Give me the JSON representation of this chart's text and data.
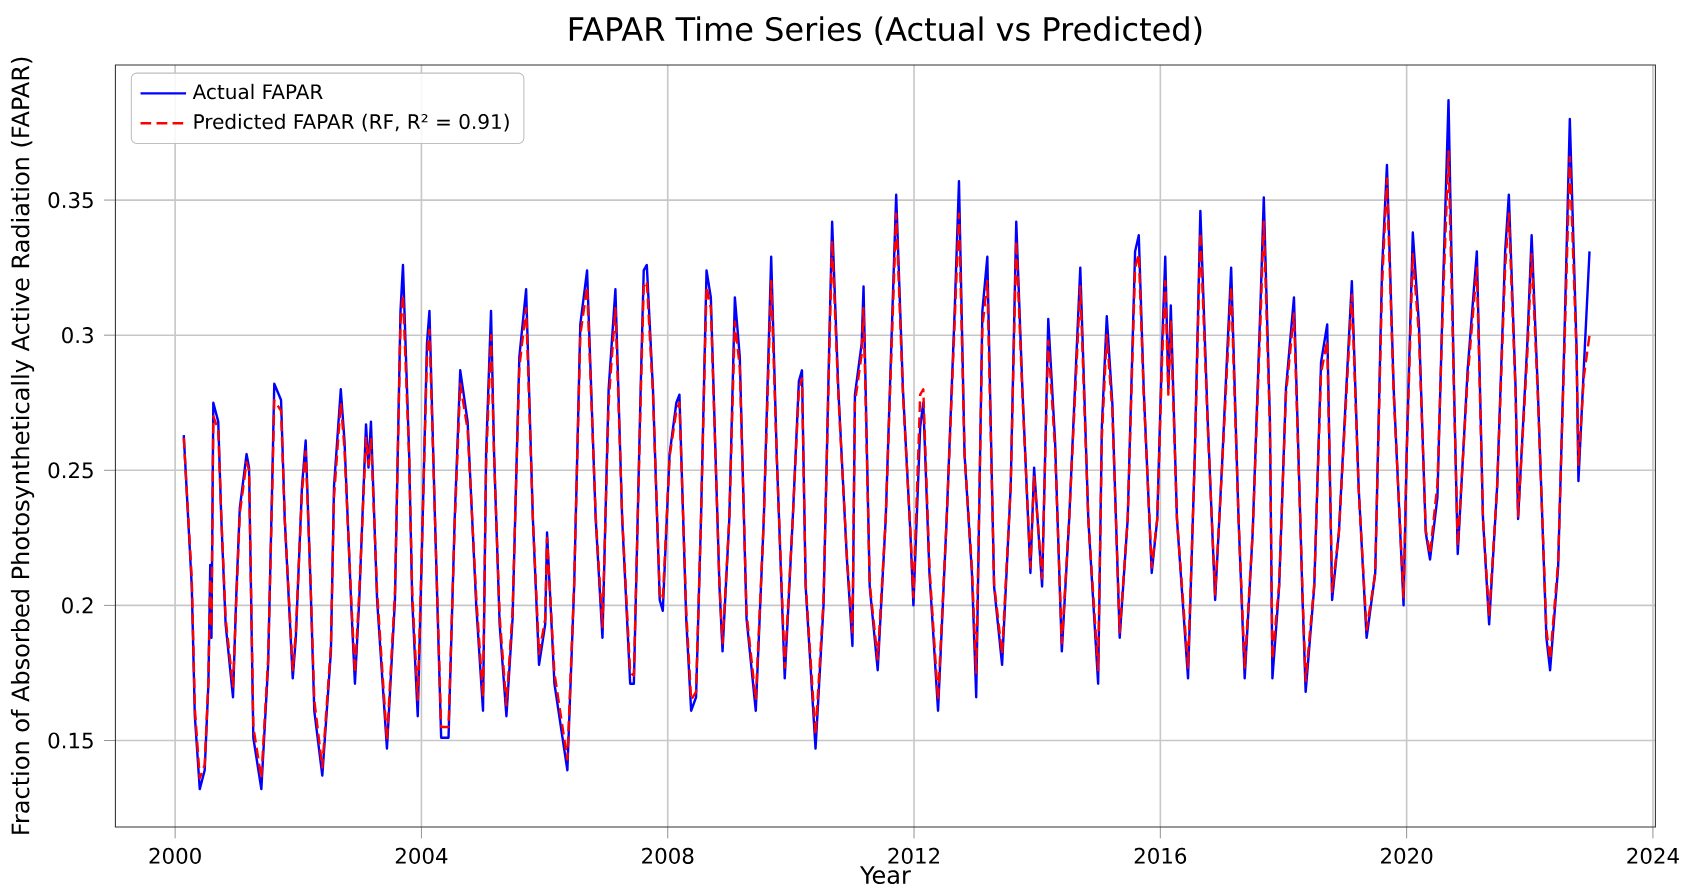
{
  "chart_data": {
    "type": "line",
    "title": "FAPAR Time Series (Actual vs Predicted)",
    "xlabel": "Year",
    "ylabel": "Fraction of Absorbed Photosynthetically Active Radiation (FAPAR)",
    "xlim": [
      1999.03,
      2024.04
    ],
    "ylim": [
      0.118,
      0.4
    ],
    "xticks": [
      2000,
      2004,
      2008,
      2012,
      2016,
      2020,
      2024
    ],
    "yticks": [
      0.15,
      0.2,
      0.25,
      0.3,
      0.35
    ],
    "grid": true,
    "legend": "top left",
    "x": [
      2000.14,
      2000.27,
      2000.32,
      2000.4,
      2000.48,
      2000.54,
      2000.57,
      2000.59,
      2000.62,
      2000.7,
      2000.75,
      2000.82,
      2000.94,
      2000.99,
      2001.05,
      2001.16,
      2001.2,
      2001.27,
      2001.4,
      2001.51,
      2001.58,
      2001.61,
      2001.72,
      2001.78,
      2001.91,
      2001.96,
      2002.06,
      2002.12,
      2002.2,
      2002.26,
      2002.39,
      2002.53,
      2002.58,
      2002.69,
      2002.75,
      2002.86,
      2002.92,
      2002.99,
      2003.1,
      2003.14,
      2003.18,
      2003.28,
      2003.44,
      2003.57,
      2003.66,
      2003.7,
      2003.8,
      2003.85,
      2003.94,
      2003.98,
      2004.09,
      2004.13,
      2004.22,
      2004.32,
      2004.44,
      2004.54,
      2004.63,
      2004.75,
      2004.89,
      2005.0,
      2005.05,
      2005.13,
      2005.18,
      2005.27,
      2005.38,
      2005.48,
      2005.59,
      2005.7,
      2005.81,
      2005.91,
      2006.01,
      2006.04,
      2006.16,
      2006.37,
      2006.48,
      2006.58,
      2006.69,
      2006.83,
      2006.94,
      2007.04,
      2007.15,
      2007.26,
      2007.39,
      2007.45,
      2007.56,
      2007.61,
      2007.66,
      2007.76,
      2007.87,
      2007.92,
      2008.03,
      2008.14,
      2008.19,
      2008.3,
      2008.38,
      2008.46,
      2008.54,
      2008.63,
      2008.7,
      2008.84,
      2008.89,
      2009.0,
      2009.09,
      2009.17,
      2009.28,
      2009.43,
      2009.56,
      2009.68,
      2009.77,
      2009.9,
      2010.03,
      2010.13,
      2010.18,
      2010.24,
      2010.4,
      2010.53,
      2010.63,
      2010.67,
      2010.77,
      2010.91,
      2011.0,
      2011.04,
      2011.15,
      2011.18,
      2011.28,
      2011.41,
      2011.54,
      2011.67,
      2011.71,
      2011.82,
      2011.94,
      2011.99,
      2012.1,
      2012.15,
      2012.25,
      2012.39,
      2012.53,
      2012.66,
      2012.73,
      2012.82,
      2012.94,
      2013.01,
      2013.11,
      2013.19,
      2013.3,
      2013.43,
      2013.57,
      2013.66,
      2013.76,
      2013.89,
      2013.95,
      2014.08,
      2014.18,
      2014.29,
      2014.4,
      2014.52,
      2014.7,
      2014.83,
      2014.99,
      2015.05,
      2015.13,
      2015.22,
      2015.34,
      2015.47,
      2015.59,
      2015.65,
      2015.73,
      2015.86,
      2015.95,
      2016.03,
      2016.08,
      2016.13,
      2016.17,
      2016.27,
      2016.45,
      2016.56,
      2016.65,
      2016.77,
      2016.89,
      2017.0,
      2017.15,
      2017.27,
      2017.37,
      2017.5,
      2017.63,
      2017.68,
      2017.78,
      2017.82,
      2017.93,
      2018.04,
      2018.17,
      2018.31,
      2018.36,
      2018.5,
      2018.61,
      2018.71,
      2018.79,
      2018.9,
      2019.11,
      2019.22,
      2019.35,
      2019.49,
      2019.6,
      2019.68,
      2019.79,
      2019.95,
      2020.0,
      2020.1,
      2020.2,
      2020.31,
      2020.38,
      2020.5,
      2020.59,
      2020.68,
      2020.77,
      2020.83,
      2020.99,
      2021.14,
      2021.24,
      2021.34,
      2021.47,
      2021.6,
      2021.66,
      2021.77,
      2021.81,
      2021.96,
      2022.03,
      2022.13,
      2022.27,
      2022.33,
      2022.46,
      2022.56,
      2022.65,
      2022.76,
      2022.79,
      2022.88,
      2022.97
    ],
    "series": [
      {
        "name": "Actual FAPAR",
        "color": "#0000ff",
        "line_style": "solid",
        "values": [
          0.263,
          0.207,
          0.159,
          0.132,
          0.139,
          0.171,
          0.215,
          0.188,
          0.275,
          0.268,
          0.232,
          0.193,
          0.166,
          0.202,
          0.236,
          0.256,
          0.251,
          0.151,
          0.132,
          0.178,
          0.249,
          0.282,
          0.276,
          0.232,
          0.173,
          0.188,
          0.244,
          0.261,
          0.207,
          0.161,
          0.137,
          0.183,
          0.244,
          0.28,
          0.261,
          0.2,
          0.171,
          0.202,
          0.267,
          0.251,
          0.268,
          0.202,
          0.147,
          0.202,
          0.309,
          0.326,
          0.256,
          0.202,
          0.159,
          0.195,
          0.297,
          0.309,
          0.232,
          0.151,
          0.151,
          0.232,
          0.287,
          0.268,
          0.2,
          0.161,
          0.256,
          0.309,
          0.256,
          0.193,
          0.159,
          0.195,
          0.292,
          0.317,
          0.232,
          0.178,
          0.193,
          0.227,
          0.171,
          0.139,
          0.207,
          0.304,
          0.324,
          0.232,
          0.188,
          0.28,
          0.317,
          0.232,
          0.171,
          0.171,
          0.28,
          0.324,
          0.326,
          0.28,
          0.202,
          0.198,
          0.256,
          0.275,
          0.278,
          0.195,
          0.161,
          0.166,
          0.232,
          0.324,
          0.314,
          0.207,
          0.183,
          0.232,
          0.314,
          0.292,
          0.195,
          0.161,
          0.232,
          0.329,
          0.256,
          0.173,
          0.232,
          0.283,
          0.287,
          0.207,
          0.147,
          0.2,
          0.304,
          0.342,
          0.28,
          0.217,
          0.185,
          0.278,
          0.297,
          0.318,
          0.207,
          0.176,
          0.232,
          0.324,
          0.352,
          0.28,
          0.227,
          0.2,
          0.266,
          0.275,
          0.212,
          0.161,
          0.232,
          0.309,
          0.357,
          0.256,
          0.212,
          0.166,
          0.309,
          0.329,
          0.207,
          0.178,
          0.244,
          0.342,
          0.28,
          0.212,
          0.251,
          0.207,
          0.306,
          0.261,
          0.183,
          0.232,
          0.325,
          0.232,
          0.171,
          0.266,
          0.307,
          0.275,
          0.188,
          0.232,
          0.331,
          0.337,
          0.28,
          0.212,
          0.232,
          0.297,
          0.329,
          0.28,
          0.311,
          0.232,
          0.173,
          0.256,
          0.346,
          0.268,
          0.202,
          0.251,
          0.325,
          0.232,
          0.173,
          0.227,
          0.314,
          0.351,
          0.268,
          0.173,
          0.207,
          0.28,
          0.314,
          0.202,
          0.168,
          0.207,
          0.29,
          0.304,
          0.202,
          0.227,
          0.32,
          0.244,
          0.188,
          0.212,
          0.324,
          0.363,
          0.28,
          0.2,
          0.256,
          0.338,
          0.304,
          0.227,
          0.217,
          0.24,
          0.317,
          0.387,
          0.28,
          0.219,
          0.287,
          0.331,
          0.232,
          0.193,
          0.244,
          0.331,
          0.352,
          0.28,
          0.232,
          0.297,
          0.337,
          0.28,
          0.188,
          0.176,
          0.214,
          0.297,
          0.38,
          0.295,
          0.246,
          0.289,
          0.331
        ]
      },
      {
        "name": "Predicted FAPAR (RF, R² = 0.91)",
        "color": "#ff0000",
        "line_style": "dashed",
        "values": [
          0.262,
          0.21,
          0.162,
          0.136,
          0.141,
          0.172,
          0.21,
          0.192,
          0.27,
          0.265,
          0.233,
          0.195,
          0.17,
          0.2,
          0.234,
          0.253,
          0.25,
          0.155,
          0.136,
          0.18,
          0.245,
          0.276,
          0.272,
          0.232,
          0.176,
          0.19,
          0.242,
          0.257,
          0.208,
          0.165,
          0.14,
          0.185,
          0.24,
          0.275,
          0.258,
          0.202,
          0.175,
          0.205,
          0.262,
          0.252,
          0.262,
          0.205,
          0.15,
          0.205,
          0.305,
          0.315,
          0.255,
          0.205,
          0.165,
          0.198,
          0.292,
          0.302,
          0.232,
          0.155,
          0.155,
          0.23,
          0.282,
          0.265,
          0.203,
          0.166,
          0.252,
          0.3,
          0.255,
          0.196,
          0.163,
          0.198,
          0.288,
          0.31,
          0.232,
          0.182,
          0.195,
          0.225,
          0.175,
          0.143,
          0.208,
          0.3,
          0.318,
          0.233,
          0.192,
          0.275,
          0.31,
          0.233,
          0.175,
          0.174,
          0.276,
          0.318,
          0.32,
          0.278,
          0.204,
          0.202,
          0.255,
          0.272,
          0.275,
          0.198,
          0.165,
          0.168,
          0.232,
          0.318,
          0.31,
          0.208,
          0.186,
          0.232,
          0.305,
          0.288,
          0.197,
          0.165,
          0.232,
          0.32,
          0.255,
          0.177,
          0.232,
          0.28,
          0.284,
          0.208,
          0.152,
          0.202,
          0.3,
          0.335,
          0.278,
          0.218,
          0.19,
          0.275,
          0.293,
          0.31,
          0.208,
          0.18,
          0.232,
          0.318,
          0.345,
          0.278,
          0.228,
          0.203,
          0.278,
          0.28,
          0.214,
          0.165,
          0.232,
          0.305,
          0.345,
          0.256,
          0.214,
          0.175,
          0.303,
          0.32,
          0.208,
          0.182,
          0.244,
          0.335,
          0.278,
          0.214,
          0.248,
          0.21,
          0.298,
          0.258,
          0.186,
          0.232,
          0.318,
          0.232,
          0.176,
          0.262,
          0.3,
          0.272,
          0.19,
          0.232,
          0.325,
          0.33,
          0.278,
          0.214,
          0.232,
          0.292,
          0.32,
          0.278,
          0.305,
          0.232,
          0.177,
          0.255,
          0.338,
          0.266,
          0.204,
          0.25,
          0.318,
          0.232,
          0.177,
          0.227,
          0.308,
          0.342,
          0.266,
          0.18,
          0.208,
          0.278,
          0.308,
          0.204,
          0.172,
          0.208,
          0.286,
          0.298,
          0.205,
          0.227,
          0.315,
          0.243,
          0.191,
          0.212,
          0.318,
          0.358,
          0.278,
          0.203,
          0.255,
          0.33,
          0.3,
          0.228,
          0.219,
          0.245,
          0.312,
          0.368,
          0.278,
          0.222,
          0.284,
          0.325,
          0.232,
          0.196,
          0.244,
          0.325,
          0.345,
          0.278,
          0.233,
          0.293,
          0.33,
          0.278,
          0.191,
          0.18,
          0.216,
          0.293,
          0.366,
          0.292,
          0.252,
          0.285,
          0.3
        ]
      }
    ]
  }
}
